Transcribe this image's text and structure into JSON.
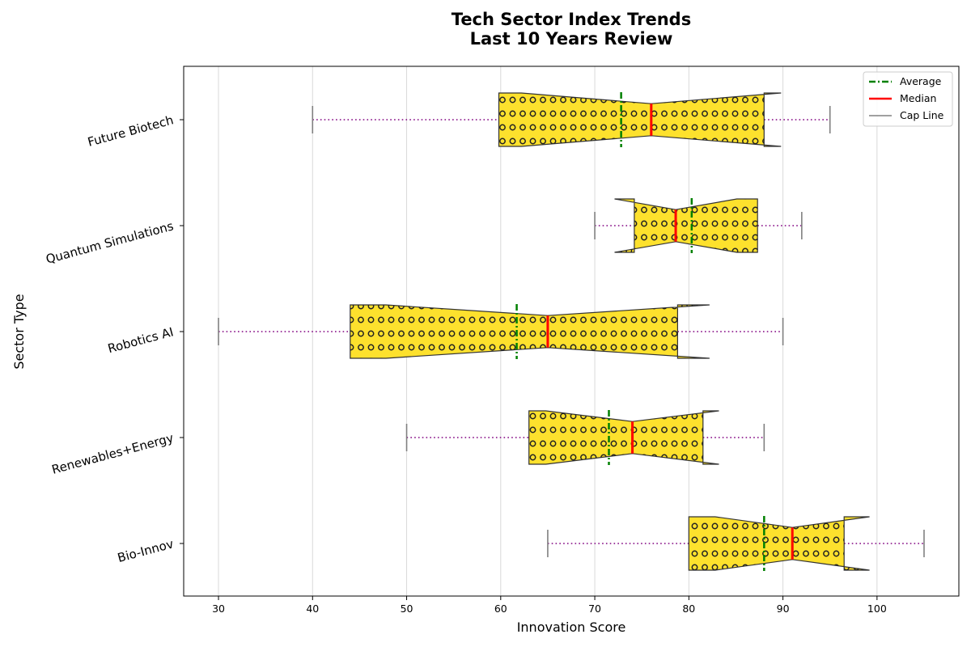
{
  "chart_data": {
    "type": "boxplot",
    "orientation": "horizontal",
    "notched": true,
    "title_lines": [
      "Tech Sector Index Trends",
      "Last 10 Years Review"
    ],
    "xlabel": "Innovation Score",
    "ylabel": "Sector Type",
    "xlim": [
      26.3,
      108.7
    ],
    "xticks": [
      30,
      40,
      50,
      60,
      70,
      80,
      90,
      100
    ],
    "grid": "vertical",
    "legend_position": "top-right",
    "legend": [
      {
        "label": "Average",
        "color": "#008000",
        "style": "dash-dot"
      },
      {
        "label": "Median",
        "color": "#ff0000",
        "style": "solid"
      },
      {
        "label": "Cap Line",
        "color": "#808080",
        "style": "solid"
      }
    ],
    "box_color": "#fde12d",
    "whisker_color": "#800080",
    "cap_color": "#808080",
    "hatch": "circles",
    "categories": [
      "Bio-Innov",
      "Renewables+Energy",
      "Robotics AI",
      "Quantum Simulations",
      "Future Biotech"
    ],
    "boxes": [
      {
        "category": "Bio-Innov",
        "whislo": 65,
        "q1": 80,
        "med": 91,
        "q3": 96.5,
        "whishi": 105,
        "mean": 88,
        "notch": [
          82.8,
          99.2
        ]
      },
      {
        "category": "Renewables+Energy",
        "whislo": 50,
        "q1": 63,
        "med": 74,
        "q3": 81.5,
        "whishi": 88,
        "mean": 71.5,
        "notch": [
          64.8,
          83.2
        ]
      },
      {
        "category": "Robotics AI",
        "whislo": 30,
        "q1": 44,
        "med": 65,
        "q3": 78.8,
        "whishi": 90,
        "mean": 61.7,
        "notch": [
          47.8,
          82.2
        ]
      },
      {
        "category": "Quantum Simulations",
        "whislo": 70,
        "q1": 74.2,
        "med": 78.6,
        "q3": 87.3,
        "whishi": 92,
        "mean": 80.3,
        "notch": [
          72.1,
          85.1
        ]
      },
      {
        "category": "Future Biotech",
        "whislo": 40,
        "q1": 59.8,
        "med": 76,
        "q3": 88,
        "whishi": 95,
        "mean": 72.8,
        "notch": [
          62.2,
          89.8
        ]
      }
    ]
  }
}
